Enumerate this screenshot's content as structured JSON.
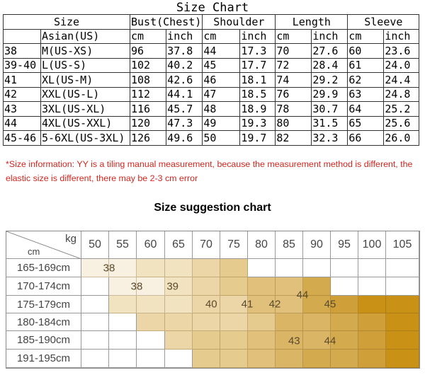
{
  "size_chart": {
    "title": "Size Chart",
    "group_headers": [
      "Size",
      "Bust(Chest)",
      "Shoulder",
      "Length",
      "Sleeve"
    ],
    "sub_headers": [
      "",
      "Asian(US)",
      "cm",
      "inch",
      "cm",
      "inch",
      "cm",
      "inch",
      "cm",
      "inch"
    ],
    "rows": [
      [
        "38",
        "M(US-XS)",
        "96",
        "37.8",
        "44",
        "17.3",
        "70",
        "27.6",
        "60",
        "23.6"
      ],
      [
        "39-40",
        "L(US-S)",
        "102",
        "40.2",
        "45",
        "17.7",
        "72",
        "28.4",
        "61",
        "24.0"
      ],
      [
        "41",
        "XL(US-M)",
        "108",
        "42.6",
        "46",
        "18.1",
        "74",
        "29.2",
        "62",
        "24.4"
      ],
      [
        "42",
        "XXL(US-L)",
        "112",
        "44.1",
        "47",
        "18.5",
        "76",
        "29.9",
        "63",
        "24.8"
      ],
      [
        "43",
        "3XL(US-XL)",
        "116",
        "45.7",
        "48",
        "18.9",
        "78",
        "30.7",
        "64",
        "25.2"
      ],
      [
        "44",
        "4XL(US-XXL)",
        "120",
        "47.3",
        "49",
        "19.3",
        "80",
        "31.5",
        "65",
        "25.6"
      ],
      [
        "45-46",
        "5-6XL(US-3XL)",
        "126",
        "49.6",
        "50",
        "19.7",
        "82",
        "32.3",
        "66",
        "26.0"
      ]
    ]
  },
  "note": "*Size information: YY is a tiling manual measurement, because the measurement method is different, the elastic size is different, there may be 2-3 cm error",
  "note_color": "#d2261e",
  "suggestion": {
    "title": "Size suggestion chart",
    "corner_top": "kg",
    "corner_bottom": "cm",
    "weights": [
      "50",
      "55",
      "60",
      "65",
      "70",
      "75",
      "80",
      "85",
      "90",
      "95",
      "100",
      "105"
    ],
    "heights": [
      "165-169cm",
      "170-174cm",
      "175-179cm",
      "180-184cm",
      "185-190cm",
      "191-195cm"
    ],
    "cells": [
      [
        38,
        38,
        39,
        39,
        40,
        41,
        0,
        0,
        0,
        0,
        0,
        0
      ],
      [
        0,
        38,
        38,
        39,
        40,
        41,
        42,
        42,
        44,
        0,
        0,
        0
      ],
      [
        0,
        39,
        39,
        39,
        40,
        40,
        42,
        42,
        44,
        45,
        46,
        46
      ],
      [
        0,
        0,
        40,
        40,
        40,
        40,
        41,
        43,
        43,
        44,
        45,
        46
      ],
      [
        0,
        0,
        0,
        40,
        41,
        41,
        42,
        43,
        43,
        44,
        45,
        46
      ],
      [
        0,
        0,
        0,
        0,
        41,
        41,
        42,
        43,
        44,
        44,
        45,
        46
      ]
    ],
    "labels": [
      {
        "text": "38",
        "row": 0,
        "col": 0.5
      },
      {
        "text": "38",
        "row": 1,
        "col": 1.5
      },
      {
        "text": "39",
        "row": 1,
        "col": 2.8
      },
      {
        "text": "40",
        "row": 2,
        "col": 4.2
      },
      {
        "text": "41",
        "row": 2,
        "col": 5.5
      },
      {
        "text": "42",
        "row": 2,
        "col": 6.5
      },
      {
        "text": "44",
        "row": 1.5,
        "col": 7.5
      },
      {
        "text": "45",
        "row": 2,
        "col": 8.5
      },
      {
        "text": "43",
        "row": 4,
        "col": 7.2
      },
      {
        "text": "44",
        "row": 4,
        "col": 8.5
      }
    ],
    "colors": {
      "0": "#ffffff",
      "38": "#f8f0e0",
      "39": "#f1e2c0",
      "40": "#ecd6a8",
      "41": "#e6cb8e",
      "42": "#e0c07a",
      "43": "#dab566",
      "44": "#d4aa4e",
      "45": "#cfa03a",
      "46": "#c99216"
    }
  }
}
